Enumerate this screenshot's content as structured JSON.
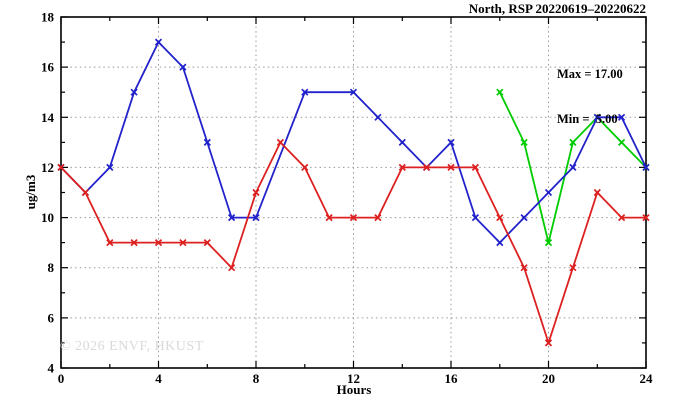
{
  "title": "North, RSP 20220619–20220622",
  "stats": {
    "max_label": "Max = 17.00",
    "min_label": "Min =  5.00"
  },
  "watermark": "© 2026 ENVF, HKUST",
  "chart_data": {
    "type": "line",
    "title": "North, RSP 20220619–20220622",
    "xlabel": "Hours",
    "ylabel": "ug/m3",
    "xlim": [
      0,
      24
    ],
    "ylim": [
      4,
      18
    ],
    "xticks_major": [
      0,
      4,
      8,
      12,
      16,
      20,
      24
    ],
    "xticks_minor": [
      2,
      6,
      10,
      14,
      18,
      22
    ],
    "yticks_major": [
      4,
      6,
      8,
      10,
      12,
      14,
      16,
      18
    ],
    "yticks_minor": [
      5,
      7,
      9,
      11,
      13,
      15,
      17
    ],
    "grid_x": [
      4,
      8,
      12,
      16,
      20
    ],
    "grid_y": [
      6,
      8,
      10,
      12,
      14,
      16
    ],
    "grid_on": true,
    "legend_position": "top-right-inside",
    "annotations": {
      "max": 17.0,
      "min": 5.0
    },
    "colors": {
      "axis": "#000000",
      "grid": "#999999"
    },
    "marker": "x",
    "series": [
      {
        "name": "green",
        "color": "#00cc00",
        "points": [
          [
            18,
            15
          ],
          [
            19,
            13
          ],
          [
            20,
            9
          ],
          [
            21,
            13
          ],
          [
            22,
            14
          ],
          [
            23,
            13
          ],
          [
            24,
            12
          ]
        ]
      },
      {
        "name": "blue",
        "color": "#2222cc",
        "points": [
          [
            0,
            12
          ],
          [
            1,
            11
          ],
          [
            2,
            12
          ],
          [
            3,
            15
          ],
          [
            4,
            17
          ],
          [
            5,
            16
          ],
          [
            6,
            13
          ],
          [
            7,
            10
          ],
          [
            8,
            10
          ],
          [
            10,
            15
          ],
          [
            12,
            15
          ],
          [
            13,
            14
          ],
          [
            14,
            13
          ],
          [
            15,
            12
          ],
          [
            16,
            13
          ],
          [
            17,
            10
          ],
          [
            18,
            9
          ],
          [
            19,
            10
          ],
          [
            20,
            11
          ],
          [
            21,
            12
          ],
          [
            22,
            14
          ],
          [
            23,
            14
          ],
          [
            24,
            12
          ]
        ]
      },
      {
        "name": "red",
        "color": "#dd2020",
        "points": [
          [
            0,
            12
          ],
          [
            1,
            11
          ],
          [
            2,
            9
          ],
          [
            3,
            9
          ],
          [
            4,
            9
          ],
          [
            5,
            9
          ],
          [
            6,
            9
          ],
          [
            7,
            8
          ],
          [
            8,
            11
          ],
          [
            9,
            13
          ],
          [
            10,
            12
          ],
          [
            11,
            10
          ],
          [
            12,
            10
          ],
          [
            13,
            10
          ],
          [
            14,
            12
          ],
          [
            15,
            12
          ],
          [
            16,
            12
          ],
          [
            17,
            12
          ],
          [
            18,
            10
          ],
          [
            19,
            8
          ],
          [
            20,
            5
          ],
          [
            21,
            8
          ],
          [
            22,
            11
          ],
          [
            23,
            10
          ],
          [
            24,
            10
          ]
        ]
      }
    ]
  }
}
